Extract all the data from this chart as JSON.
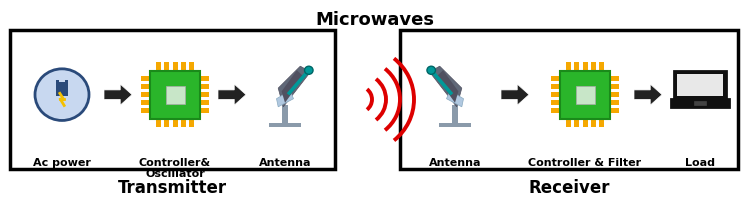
{
  "title": "Microwaves",
  "title_fontsize": 13,
  "transmitter_label": "Transmitter",
  "receiver_label": "Receiver",
  "bg_color": "#ffffff",
  "chip_green": "#2ab52a",
  "chip_green_dark": "#1a8a1a",
  "chip_gold": "#f5a800",
  "chip_light": "#c8e6c8",
  "label_fontsize": 8,
  "bold_label_fontsize": 12,
  "microwave_color": "#dd0000",
  "arrow_color": "#222222",
  "plug_circle_color": "#2a4a7a",
  "plug_fill": "#c8d8f0",
  "antenna_dish_color": "#606070",
  "antenna_arm_color": "#009999",
  "antenna_base_color": "#8a9aaa",
  "laptop_body": "#111111",
  "laptop_screen_inner": "#e8e8e8"
}
